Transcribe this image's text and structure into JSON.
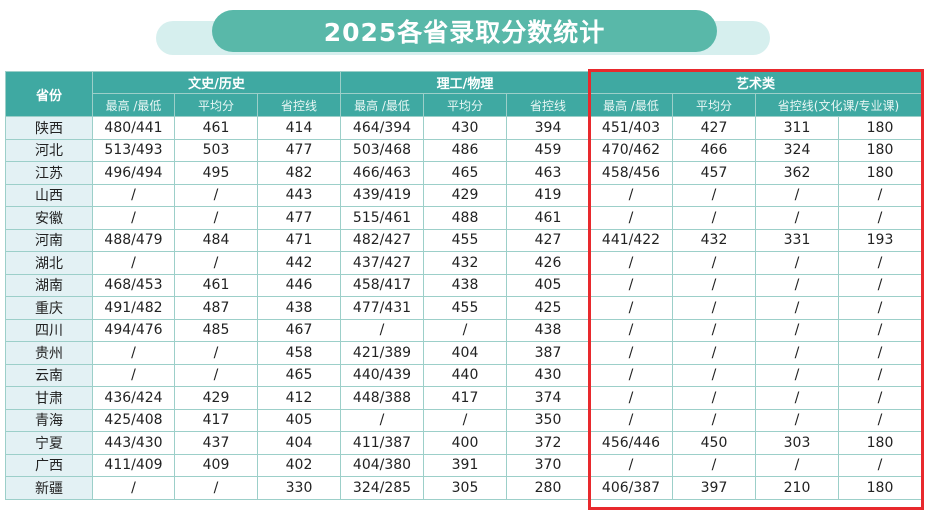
{
  "title": "2025各省录取分数统计",
  "header": {
    "province": "省份",
    "groups": [
      "文史/历史",
      "理工/物理",
      "艺术类"
    ],
    "sub": [
      "最高 /最低",
      "平均分",
      "省控线",
      "最高 /最低",
      "平均分",
      "省控线",
      "最高 /最低",
      "平均分",
      "省控线(文化课/专业课)"
    ]
  },
  "rows": [
    {
      "p": "陕西",
      "v": [
        "480/441",
        "461",
        "414",
        "464/394",
        "430",
        "394",
        "451/403",
        "427",
        "311",
        "180"
      ]
    },
    {
      "p": "河北",
      "v": [
        "513/493",
        "503",
        "477",
        "503/468",
        "486",
        "459",
        "470/462",
        "466",
        "324",
        "180"
      ]
    },
    {
      "p": "江苏",
      "v": [
        "496/494",
        "495",
        "482",
        "466/463",
        "465",
        "463",
        "458/456",
        "457",
        "362",
        "180"
      ]
    },
    {
      "p": "山西",
      "v": [
        "/",
        "/",
        "443",
        "439/419",
        "429",
        "419",
        "/",
        "/",
        "/",
        "/"
      ]
    },
    {
      "p": "安徽",
      "v": [
        "/",
        "/",
        "477",
        "515/461",
        "488",
        "461",
        "/",
        "/",
        "/",
        "/"
      ]
    },
    {
      "p": "河南",
      "v": [
        "488/479",
        "484",
        "471",
        "482/427",
        "455",
        "427",
        "441/422",
        "432",
        "331",
        "193"
      ]
    },
    {
      "p": "湖北",
      "v": [
        "/",
        "/",
        "442",
        "437/427",
        "432",
        "426",
        "/",
        "/",
        "/",
        "/"
      ]
    },
    {
      "p": "湖南",
      "v": [
        "468/453",
        "461",
        "446",
        "458/417",
        "438",
        "405",
        "/",
        "/",
        "/",
        "/"
      ]
    },
    {
      "p": "重庆",
      "v": [
        "491/482",
        "487",
        "438",
        "477/431",
        "455",
        "425",
        "/",
        "/",
        "/",
        "/"
      ]
    },
    {
      "p": "四川",
      "v": [
        "494/476",
        "485",
        "467",
        "/",
        "/",
        "438",
        "/",
        "/",
        "/",
        "/"
      ]
    },
    {
      "p": "贵州",
      "v": [
        "/",
        "/",
        "458",
        "421/389",
        "404",
        "387",
        "/",
        "/",
        "/",
        "/"
      ]
    },
    {
      "p": "云南",
      "v": [
        "/",
        "/",
        "465",
        "440/439",
        "440",
        "430",
        "/",
        "/",
        "/",
        "/"
      ]
    },
    {
      "p": "甘肃",
      "v": [
        "436/424",
        "429",
        "412",
        "448/388",
        "417",
        "374",
        "/",
        "/",
        "/",
        "/"
      ]
    },
    {
      "p": "青海",
      "v": [
        "425/408",
        "417",
        "405",
        "/",
        "/",
        "350",
        "/",
        "/",
        "/",
        "/"
      ]
    },
    {
      "p": "宁夏",
      "v": [
        "443/430",
        "437",
        "404",
        "411/387",
        "400",
        "372",
        "456/446",
        "450",
        "303",
        "180"
      ]
    },
    {
      "p": "广西",
      "v": [
        "411/409",
        "409",
        "402",
        "404/380",
        "391",
        "370",
        "/",
        "/",
        "/",
        "/"
      ]
    },
    {
      "p": "新疆",
      "v": [
        "/",
        "/",
        "330",
        "324/285",
        "305",
        "280",
        "406/387",
        "397",
        "210",
        "180"
      ]
    }
  ]
}
